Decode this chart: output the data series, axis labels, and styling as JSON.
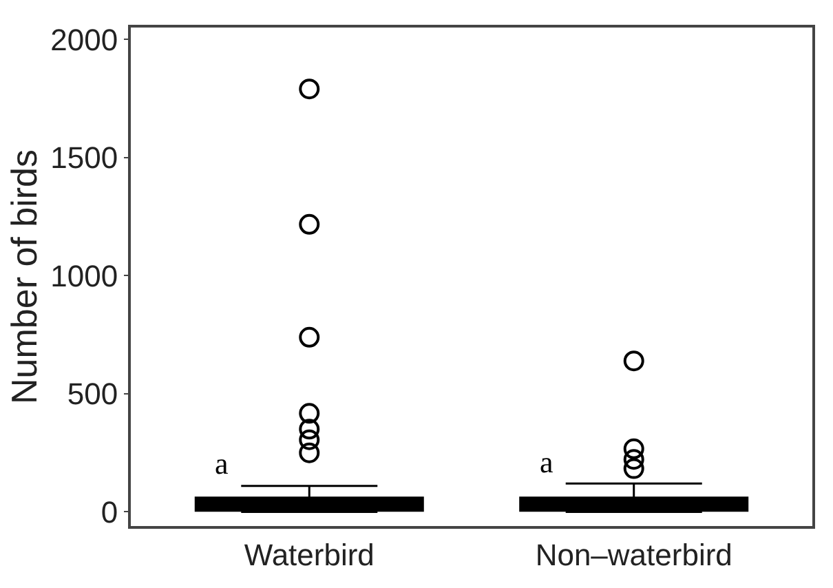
{
  "chart_data": {
    "type": "box",
    "ylabel": "Number of birds",
    "categories": [
      "Waterbird",
      "Non–waterbird"
    ],
    "boxes": [
      {
        "low": 0,
        "q1": 5,
        "median": 25,
        "q3": 60,
        "high": 110,
        "outliers": [
          250,
          305,
          350,
          417,
          739,
          1217,
          1790
        ]
      },
      {
        "low": 0,
        "q1": 5,
        "median": 25,
        "q3": 60,
        "high": 120,
        "outliers": [
          183,
          222,
          267,
          639
        ]
      }
    ],
    "color": "#000000",
    "ylim": [
      -60,
      2050
    ],
    "yticks": [
      0,
      500,
      1000,
      1500,
      2000
    ],
    "marker": "circle",
    "annotations": [
      "a",
      "a"
    ]
  }
}
